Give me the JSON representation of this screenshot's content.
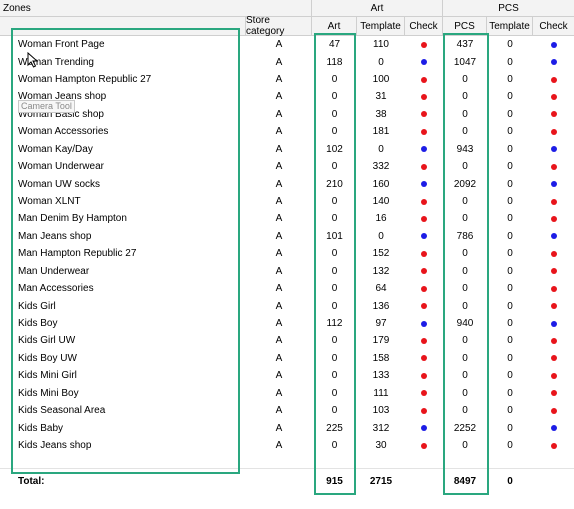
{
  "headers": {
    "zones": "Zones",
    "store_category": "Store category",
    "art_group": "Art",
    "pcs_group": "PCS",
    "art": "Art",
    "art_template": "Template",
    "art_check": "Check",
    "pcs": "PCS",
    "pcs_template": "Template",
    "pcs_check": "Check"
  },
  "tooltip": "Camera Tool",
  "colors": {
    "red": "#e8141b",
    "blue": "#1d1de6",
    "highlight": "#2aa77f"
  },
  "rows": [
    {
      "zone": "Woman Front Page",
      "cat": "A",
      "art": "47",
      "art_tpl": "110",
      "art_chk": "red",
      "pcs": "437",
      "pcs_tpl": "0",
      "pcs_chk": "blue"
    },
    {
      "zone": "Woman Trending",
      "cat": "A",
      "art": "118",
      "art_tpl": "0",
      "art_chk": "blue",
      "pcs": "1047",
      "pcs_tpl": "0",
      "pcs_chk": "blue"
    },
    {
      "zone": "Woman Hampton Republic 27",
      "cat": "A",
      "art": "0",
      "art_tpl": "100",
      "art_chk": "red",
      "pcs": "0",
      "pcs_tpl": "0",
      "pcs_chk": "red"
    },
    {
      "zone": "Woman Jeans shop",
      "cat": "A",
      "art": "0",
      "art_tpl": "31",
      "art_chk": "red",
      "pcs": "0",
      "pcs_tpl": "0",
      "pcs_chk": "red"
    },
    {
      "zone": "Woman Basic shop",
      "cat": "A",
      "art": "0",
      "art_tpl": "38",
      "art_chk": "red",
      "pcs": "0",
      "pcs_tpl": "0",
      "pcs_chk": "red"
    },
    {
      "zone": "Woman Accessories",
      "cat": "A",
      "art": "0",
      "art_tpl": "181",
      "art_chk": "red",
      "pcs": "0",
      "pcs_tpl": "0",
      "pcs_chk": "red"
    },
    {
      "zone": "Woman Kay/Day",
      "cat": "A",
      "art": "102",
      "art_tpl": "0",
      "art_chk": "blue",
      "pcs": "943",
      "pcs_tpl": "0",
      "pcs_chk": "blue"
    },
    {
      "zone": "Woman Underwear",
      "cat": "A",
      "art": "0",
      "art_tpl": "332",
      "art_chk": "red",
      "pcs": "0",
      "pcs_tpl": "0",
      "pcs_chk": "red"
    },
    {
      "zone": "Woman UW socks",
      "cat": "A",
      "art": "210",
      "art_tpl": "160",
      "art_chk": "blue",
      "pcs": "2092",
      "pcs_tpl": "0",
      "pcs_chk": "blue"
    },
    {
      "zone": "Woman XLNT",
      "cat": "A",
      "art": "0",
      "art_tpl": "140",
      "art_chk": "red",
      "pcs": "0",
      "pcs_tpl": "0",
      "pcs_chk": "red"
    },
    {
      "zone": "Man Denim By Hampton",
      "cat": "A",
      "art": "0",
      "art_tpl": "16",
      "art_chk": "red",
      "pcs": "0",
      "pcs_tpl": "0",
      "pcs_chk": "red"
    },
    {
      "zone": "Man Jeans shop",
      "cat": "A",
      "art": "101",
      "art_tpl": "0",
      "art_chk": "blue",
      "pcs": "786",
      "pcs_tpl": "0",
      "pcs_chk": "blue"
    },
    {
      "zone": "Man Hampton Republic 27",
      "cat": "A",
      "art": "0",
      "art_tpl": "152",
      "art_chk": "red",
      "pcs": "0",
      "pcs_tpl": "0",
      "pcs_chk": "red"
    },
    {
      "zone": "Man Underwear",
      "cat": "A",
      "art": "0",
      "art_tpl": "132",
      "art_chk": "red",
      "pcs": "0",
      "pcs_tpl": "0",
      "pcs_chk": "red"
    },
    {
      "zone": "Man Accessories",
      "cat": "A",
      "art": "0",
      "art_tpl": "64",
      "art_chk": "red",
      "pcs": "0",
      "pcs_tpl": "0",
      "pcs_chk": "red"
    },
    {
      "zone": "Kids Girl",
      "cat": "A",
      "art": "0",
      "art_tpl": "136",
      "art_chk": "red",
      "pcs": "0",
      "pcs_tpl": "0",
      "pcs_chk": "red"
    },
    {
      "zone": "Kids Boy",
      "cat": "A",
      "art": "112",
      "art_tpl": "97",
      "art_chk": "blue",
      "pcs": "940",
      "pcs_tpl": "0",
      "pcs_chk": "blue"
    },
    {
      "zone": "Kids Girl UW",
      "cat": "A",
      "art": "0",
      "art_tpl": "179",
      "art_chk": "red",
      "pcs": "0",
      "pcs_tpl": "0",
      "pcs_chk": "red"
    },
    {
      "zone": "Kids Boy UW",
      "cat": "A",
      "art": "0",
      "art_tpl": "158",
      "art_chk": "red",
      "pcs": "0",
      "pcs_tpl": "0",
      "pcs_chk": "red"
    },
    {
      "zone": "Kids Mini Girl",
      "cat": "A",
      "art": "0",
      "art_tpl": "133",
      "art_chk": "red",
      "pcs": "0",
      "pcs_tpl": "0",
      "pcs_chk": "red"
    },
    {
      "zone": "Kids Mini Boy",
      "cat": "A",
      "art": "0",
      "art_tpl": "111",
      "art_chk": "red",
      "pcs": "0",
      "pcs_tpl": "0",
      "pcs_chk": "red"
    },
    {
      "zone": "Kids Seasonal Area",
      "cat": "A",
      "art": "0",
      "art_tpl": "103",
      "art_chk": "red",
      "pcs": "0",
      "pcs_tpl": "0",
      "pcs_chk": "red"
    },
    {
      "zone": "Kids Baby",
      "cat": "A",
      "art": "225",
      "art_tpl": "312",
      "art_chk": "blue",
      "pcs": "2252",
      "pcs_tpl": "0",
      "pcs_chk": "blue"
    },
    {
      "zone": "Kids Jeans shop",
      "cat": "A",
      "art": "0",
      "art_tpl": "30",
      "art_chk": "red",
      "pcs": "0",
      "pcs_tpl": "0",
      "pcs_chk": "red"
    }
  ],
  "totals": {
    "label": "Total:",
    "art": "915",
    "art_tpl": "2715",
    "pcs": "8497",
    "pcs_tpl": "0"
  }
}
